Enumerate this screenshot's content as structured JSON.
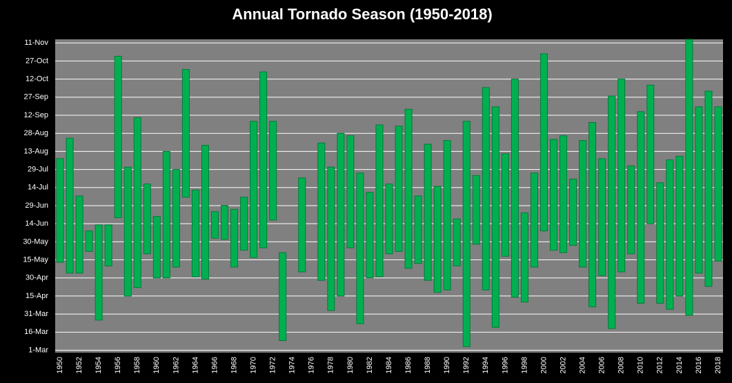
{
  "chart_data": {
    "type": "range-bar",
    "title": "Annual Tornado Season (1950-2018)",
    "categories": [
      "1950",
      null,
      "1952",
      null,
      "1954",
      null,
      "1956",
      null,
      "1958",
      null,
      "1960",
      null,
      "1962",
      null,
      "1964",
      null,
      "1966",
      null,
      "1968",
      null,
      "1970",
      null,
      "1972",
      null,
      "1974",
      null,
      "1976",
      null,
      "1978",
      null,
      "1980",
      null,
      "1982",
      null,
      "1984",
      null,
      "1986",
      null,
      "1988",
      null,
      "1990",
      null,
      "1992",
      null,
      "1994",
      null,
      "1996",
      null,
      "1998",
      null,
      "2000",
      null,
      "2002",
      null,
      "2004",
      null,
      "2006",
      null,
      "2008",
      null,
      "2010",
      null,
      "2012",
      null,
      "2014",
      null,
      "2016",
      null,
      "2018"
    ],
    "low": [
      133,
      124,
      124,
      142,
      85,
      130,
      170,
      105,
      112,
      140,
      120,
      120,
      129,
      187,
      121,
      119,
      153,
      152,
      129,
      143,
      137,
      145,
      168,
      68,
      null,
      125,
      null,
      118,
      93,
      105,
      145,
      82,
      120,
      121,
      140,
      142,
      128,
      132,
      118,
      108,
      110,
      130,
      63,
      148,
      110,
      79,
      138,
      104,
      100,
      129,
      159,
      143,
      141,
      147,
      129,
      96,
      122,
      78,
      125,
      140,
      99,
      165,
      99,
      94,
      105,
      89,
      124,
      113,
      134
    ],
    "high": [
      219,
      236,
      188,
      159,
      164,
      164,
      304,
      212,
      253,
      198,
      171,
      225,
      210,
      293,
      193,
      230,
      175,
      180,
      177,
      187,
      250,
      291,
      250,
      141,
      null,
      203,
      null,
      232,
      212,
      240,
      238,
      207,
      191,
      247,
      198,
      246,
      260,
      188,
      231,
      196,
      234,
      169,
      250,
      205,
      278,
      262,
      223,
      285,
      174,
      207,
      306,
      235,
      238,
      202,
      234,
      249,
      219,
      271,
      285,
      213,
      258,
      280,
      199,
      218,
      221,
      318,
      262,
      275,
      262
    ],
    "color": "#00b050",
    "ylim": [
      58,
      318
    ],
    "yticks": [
      {
        "value": 60,
        "label": "1-Mar"
      },
      {
        "value": 75,
        "label": "16-Mar"
      },
      {
        "value": 90,
        "label": "31-Mar"
      },
      {
        "value": 105,
        "label": "15-Apr"
      },
      {
        "value": 120,
        "label": "30-Apr"
      },
      {
        "value": 135,
        "label": "15-May"
      },
      {
        "value": 150,
        "label": "30-May"
      },
      {
        "value": 165,
        "label": "14-Jun"
      },
      {
        "value": 180,
        "label": "29-Jun"
      },
      {
        "value": 195,
        "label": "14-Jul"
      },
      {
        "value": 210,
        "label": "29-Jul"
      },
      {
        "value": 225,
        "label": "13-Aug"
      },
      {
        "value": 240,
        "label": "28-Aug"
      },
      {
        "value": 255,
        "label": "12-Sep"
      },
      {
        "value": 270,
        "label": "27-Sep"
      },
      {
        "value": 285,
        "label": "12-Oct"
      },
      {
        "value": 300,
        "label": "27-Oct"
      },
      {
        "value": 315,
        "label": "11-Nov"
      }
    ],
    "grid": true
  }
}
